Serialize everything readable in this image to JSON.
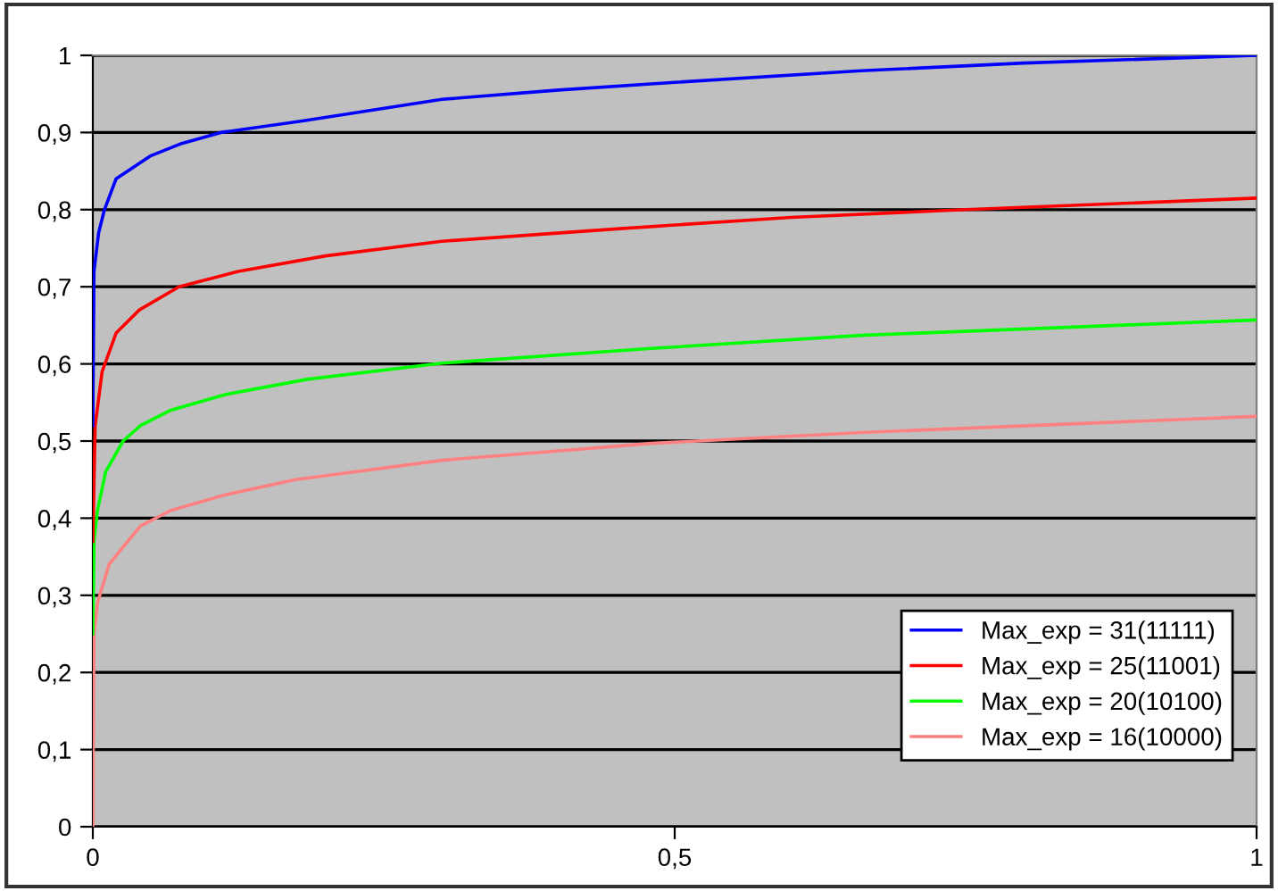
{
  "chart_data": {
    "type": "line",
    "xlim": [
      0,
      1
    ],
    "ylim": [
      0,
      1
    ],
    "xticks": [
      0,
      {
        "value": 0.5,
        "label": "0,5"
      },
      1
    ],
    "yticks": [
      0,
      {
        "value": 0.1,
        "label": "0,1"
      },
      {
        "value": 0.2,
        "label": "0,2"
      },
      {
        "value": 0.3,
        "label": "0,3"
      },
      {
        "value": 0.4,
        "label": "0,4"
      },
      {
        "value": 0.5,
        "label": "0,5"
      },
      {
        "value": 0.6,
        "label": "0,6"
      },
      {
        "value": 0.7,
        "label": "0,7"
      },
      {
        "value": 0.8,
        "label": "0,8"
      },
      {
        "value": 0.9,
        "label": "0,9"
      },
      1
    ],
    "grid": "y",
    "legend": "bottom right",
    "marker": "none",
    "line_style": "solid",
    "series": [
      {
        "name": "Max_exp = 31(11111)",
        "color": "#0000ff",
        "x": [
          0,
          0.001,
          0.005,
          0.01,
          0.02,
          0.05,
          0.075,
          0.11,
          0.18,
          0.3,
          0.4,
          0.5,
          0.66,
          0.8,
          1.0
        ],
        "values": [
          0.52,
          0.72,
          0.77,
          0.8,
          0.84,
          0.87,
          0.885,
          0.9,
          0.915,
          0.943,
          0.955,
          0.965,
          0.98,
          0.99,
          1.0
        ]
      },
      {
        "name": "Max_exp = 25(11001)",
        "color": "#ff0000",
        "x": [
          0,
          0.002,
          0.008,
          0.02,
          0.04,
          0.074,
          0.125,
          0.2,
          0.3,
          0.45,
          0.6,
          0.75,
          1.0
        ],
        "values": [
          0.37,
          0.52,
          0.59,
          0.64,
          0.67,
          0.7,
          0.72,
          0.74,
          0.759,
          0.775,
          0.79,
          0.8,
          0.815
        ]
      },
      {
        "name": "Max_exp = 20(10100)",
        "color": "#00ff00",
        "x": [
          0,
          0.001,
          0.004,
          0.011,
          0.026,
          0.041,
          0.067,
          0.113,
          0.184,
          0.3,
          0.48,
          0.66,
          1.0
        ],
        "values": [
          0.25,
          0.37,
          0.41,
          0.46,
          0.5,
          0.52,
          0.54,
          0.56,
          0.58,
          0.601,
          0.62,
          0.637,
          0.657
        ]
      },
      {
        "name": "Max_exp = 16(10000)",
        "color": "#ff8080",
        "x": [
          0,
          0.001,
          0.004,
          0.014,
          0.03,
          0.041,
          0.067,
          0.113,
          0.174,
          0.3,
          0.48,
          0.66,
          1.0
        ],
        "values": [
          0,
          0.25,
          0.29,
          0.34,
          0.37,
          0.39,
          0.41,
          0.43,
          0.45,
          0.475,
          0.497,
          0.511,
          0.532
        ]
      }
    ]
  }
}
